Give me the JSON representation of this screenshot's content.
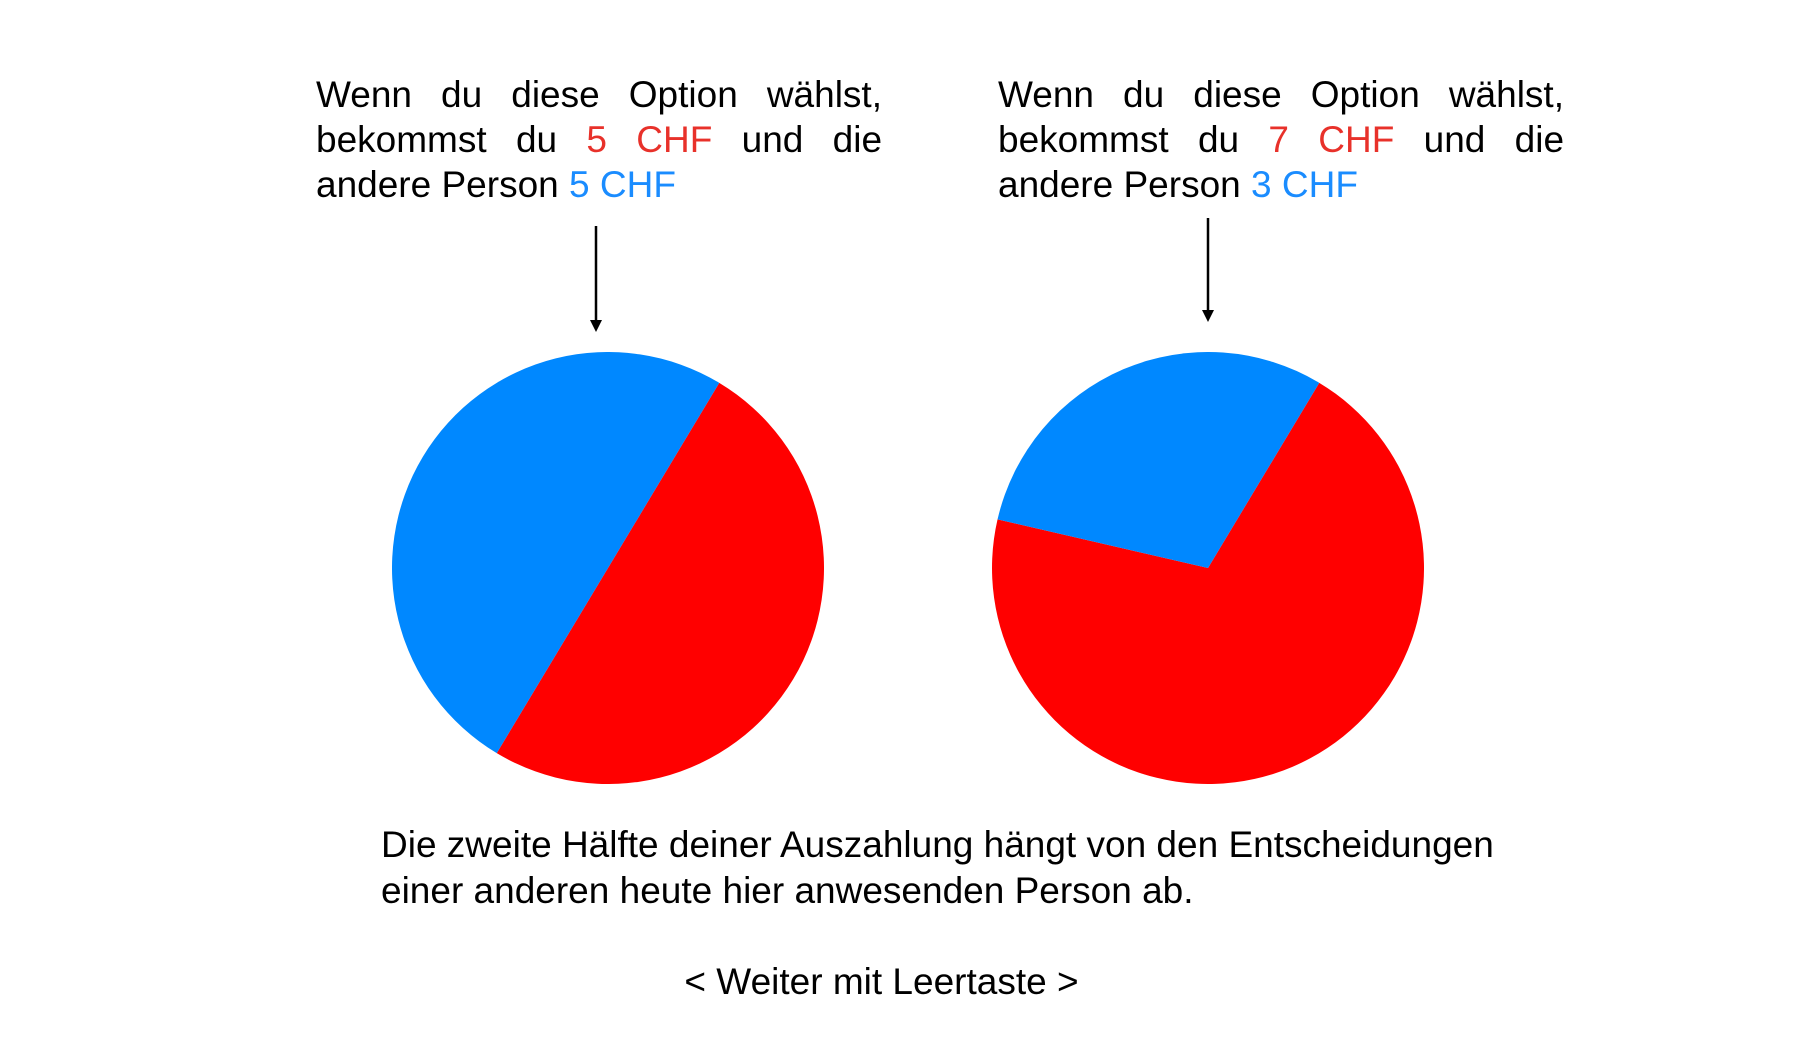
{
  "options": [
    {
      "line1": "Wenn du diese Option wählst,",
      "line2_prefix": "bekommst du",
      "self_amount": "5 CHF",
      "line2_suffix": "und die",
      "line3_prefix": "andere Person",
      "other_amount": "5 CHF"
    },
    {
      "line1": "Wenn du diese Option wählst,",
      "line2_prefix": "bekommst du",
      "self_amount": "7 CHF",
      "line2_suffix": "und die",
      "line3_prefix": "andere Person",
      "other_amount": "3 CHF"
    }
  ],
  "chart_data": [
    {
      "type": "pie",
      "slices": [
        {
          "value": 5,
          "color": "#ff0000"
        },
        {
          "value": 5,
          "color": "#0088ff"
        }
      ]
    },
    {
      "type": "pie",
      "slices": [
        {
          "value": 7,
          "color": "#ff0000"
        },
        {
          "value": 3,
          "color": "#0088ff"
        }
      ]
    }
  ],
  "colors": {
    "self_amount": "#e8312a",
    "other_amount": "#1a8cff",
    "pie_self": "#ff0000",
    "pie_other": "#0088ff"
  },
  "info_text": "Die zweite Hälfte deiner Auszahlung hängt von den Entscheidungen einer anderen heute hier anwesenden Person ab.",
  "continue_hint": "< Weiter mit Leertaste >"
}
